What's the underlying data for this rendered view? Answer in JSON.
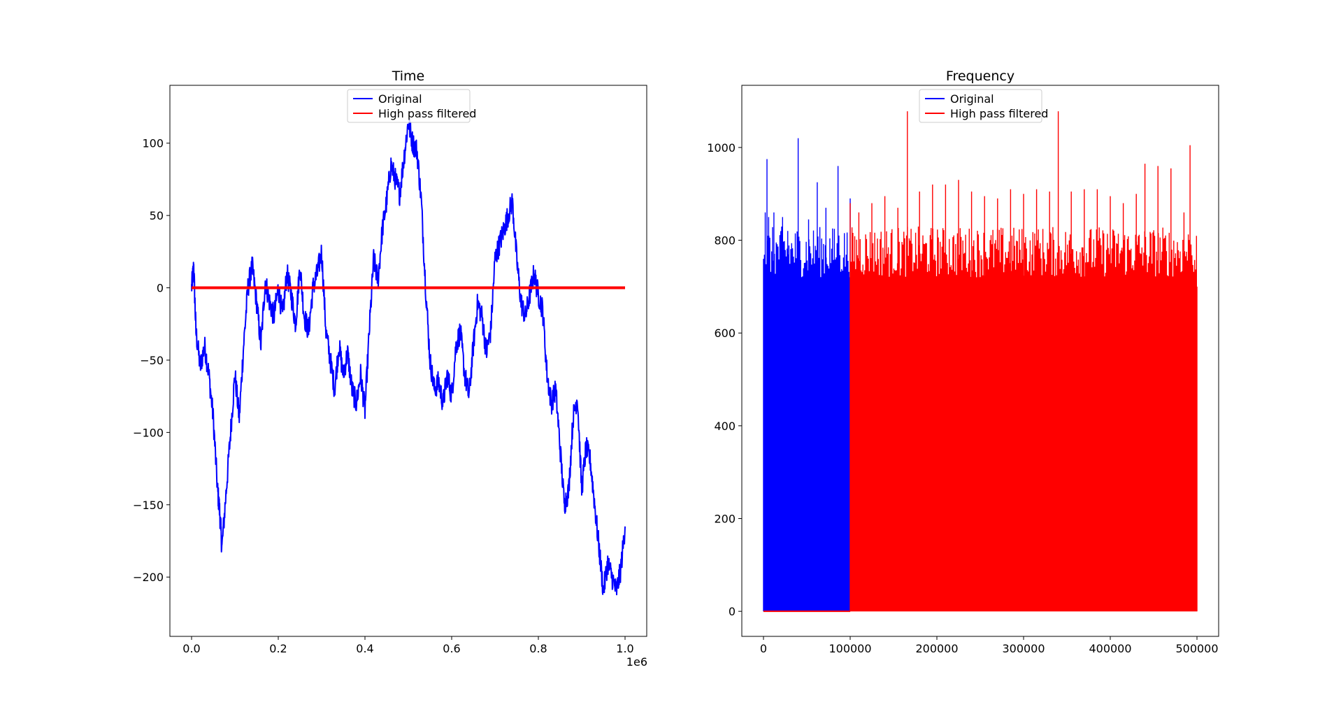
{
  "colors": {
    "original": "#0000ff",
    "filtered": "#ff0000",
    "frame": "#000000",
    "legend_border": "#cccccc",
    "background": "#ffffff"
  },
  "chart_data": [
    {
      "type": "line",
      "title": "Time",
      "xlabel": "",
      "ylabel": "",
      "x_offset_text": "1e6",
      "xlim": [
        -0.05,
        1.05
      ],
      "ylim": [
        -241,
        140
      ],
      "x_ticks": [
        0.0,
        0.2,
        0.4,
        0.6,
        0.8,
        1.0
      ],
      "x_tick_labels": [
        "0.0",
        "0.2",
        "0.4",
        "0.6",
        "0.8",
        "1.0"
      ],
      "y_ticks": [
        100,
        50,
        0,
        -50,
        -100,
        -150,
        -200
      ],
      "y_tick_labels": [
        "100",
        "50",
        "0",
        "−50",
        "−100",
        "−150",
        "−200"
      ],
      "grid": false,
      "legend": {
        "position": "upper center",
        "entries": [
          "Original",
          "High pass filtered"
        ]
      },
      "series": [
        {
          "name": "Original",
          "color": "#0000ff",
          "x": [
            0.0,
            0.005,
            0.01,
            0.02,
            0.03,
            0.04,
            0.05,
            0.06,
            0.065,
            0.07,
            0.08,
            0.09,
            0.1,
            0.11,
            0.12,
            0.13,
            0.14,
            0.15,
            0.16,
            0.17,
            0.18,
            0.19,
            0.2,
            0.21,
            0.22,
            0.23,
            0.24,
            0.25,
            0.26,
            0.27,
            0.28,
            0.29,
            0.3,
            0.31,
            0.32,
            0.33,
            0.34,
            0.35,
            0.36,
            0.37,
            0.38,
            0.39,
            0.4,
            0.41,
            0.42,
            0.43,
            0.44,
            0.45,
            0.46,
            0.47,
            0.48,
            0.49,
            0.5,
            0.51,
            0.52,
            0.53,
            0.54,
            0.55,
            0.56,
            0.57,
            0.58,
            0.59,
            0.6,
            0.61,
            0.62,
            0.63,
            0.64,
            0.65,
            0.66,
            0.67,
            0.68,
            0.69,
            0.7,
            0.71,
            0.72,
            0.73,
            0.74,
            0.75,
            0.76,
            0.77,
            0.78,
            0.79,
            0.8,
            0.81,
            0.82,
            0.83,
            0.84,
            0.85,
            0.86,
            0.87,
            0.88,
            0.89,
            0.9,
            0.91,
            0.92,
            0.93,
            0.94,
            0.95,
            0.96,
            0.97,
            0.98,
            0.99,
            1.0
          ],
          "y": [
            0,
            15,
            -30,
            -55,
            -40,
            -60,
            -90,
            -140,
            -155,
            -180,
            -140,
            -100,
            -60,
            -90,
            -40,
            0,
            15,
            -10,
            -40,
            5,
            -10,
            -20,
            0,
            -20,
            10,
            -5,
            -25,
            15,
            -20,
            -30,
            0,
            10,
            25,
            -30,
            -50,
            -70,
            -40,
            -60,
            -45,
            -70,
            -80,
            -60,
            -85,
            -30,
            20,
            5,
            40,
            60,
            85,
            75,
            65,
            90,
            115,
            100,
            95,
            60,
            0,
            -50,
            -70,
            -65,
            -80,
            -60,
            -75,
            -40,
            -30,
            -60,
            -75,
            -40,
            -10,
            -20,
            -45,
            -30,
            20,
            30,
            40,
            50,
            60,
            20,
            -10,
            -20,
            -5,
            10,
            -5,
            -15,
            -60,
            -80,
            -70,
            -110,
            -150,
            -140,
            -90,
            -75,
            -140,
            -110,
            -120,
            -150,
            -180,
            -210,
            -190,
            -200,
            -210,
            -195,
            -165
          ]
        },
        {
          "name": "High pass filtered",
          "color": "#ff0000",
          "x": [
            0.0,
            1.0
          ],
          "y": [
            0,
            0
          ]
        }
      ]
    },
    {
      "type": "line",
      "title": "Frequency",
      "xlabel": "",
      "ylabel": "",
      "xlim": [
        -25000,
        525000
      ],
      "ylim": [
        -54,
        1134
      ],
      "x_ticks": [
        0,
        100000,
        200000,
        300000,
        400000,
        500000
      ],
      "x_tick_labels": [
        "0",
        "100000",
        "200000",
        "300000",
        "400000",
        "500000"
      ],
      "y_ticks": [
        1000,
        800,
        600,
        400,
        200,
        0
      ],
      "y_tick_labels": [
        "1000",
        "800",
        "600",
        "400",
        "200",
        "0"
      ],
      "grid": false,
      "legend": {
        "position": "upper center",
        "entries": [
          "Original",
          "High pass filtered"
        ]
      },
      "series": [
        {
          "name": "Original",
          "color": "#0000ff",
          "x": [
            0,
            2000,
            4000,
            6000,
            12000,
            22000,
            28000,
            40000,
            52000,
            62000,
            72000,
            86000,
            100000
          ],
          "y": [
            760,
            860,
            975,
            850,
            860,
            850,
            820,
            1020,
            845,
            925,
            870,
            960,
            890
          ]
        },
        {
          "name": "High pass filtered",
          "color": "#ff0000",
          "x": [
            100000,
            110000,
            125000,
            140000,
            155000,
            166000,
            180000,
            195000,
            210000,
            225000,
            240000,
            255000,
            270000,
            285000,
            300000,
            315000,
            330000,
            340000,
            355000,
            370000,
            385000,
            400000,
            415000,
            430000,
            440000,
            455000,
            470000,
            485000,
            492000,
            500000
          ],
          "y": [
            880,
            860,
            880,
            895,
            870,
            1078,
            905,
            920,
            920,
            930,
            905,
            895,
            890,
            910,
            900,
            910,
            905,
            1078,
            905,
            910,
            910,
            895,
            880,
            900,
            965,
            960,
            955,
            860,
            1005,
            700
          ]
        }
      ]
    }
  ]
}
